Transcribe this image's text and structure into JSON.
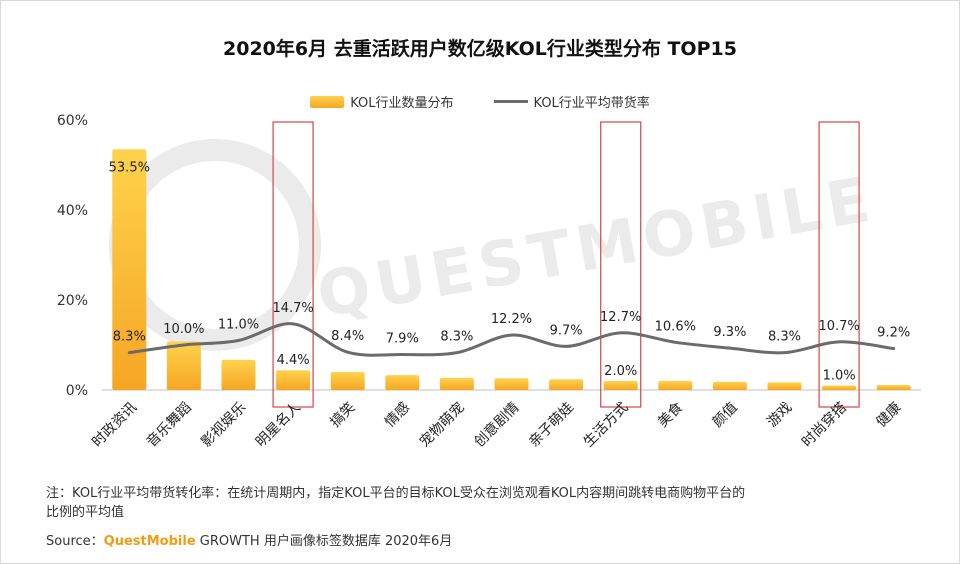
{
  "chart_data": {
    "type": "bar",
    "title": "2020年6月 去重活跃用户数亿级KOL行业类型分布 TOP15",
    "categories": [
      "时政资讯",
      "音乐舞蹈",
      "影视娱乐",
      "明星名人",
      "搞笑",
      "情感",
      "宠物萌宠",
      "创意剧情",
      "亲子萌娃",
      "生活方式",
      "美食",
      "颜值",
      "游戏",
      "时尚穿搭",
      "健康"
    ],
    "series": [
      {
        "name": "KOL行业数量分布",
        "type": "bar",
        "values": [
          53.5,
          10.8,
          6.7,
          4.4,
          4.0,
          3.3,
          2.7,
          2.6,
          2.4,
          2.0,
          2.0,
          1.8,
          1.7,
          1.0,
          1.1
        ],
        "labels": [
          "53.5%",
          null,
          null,
          "4.4%",
          null,
          null,
          null,
          null,
          null,
          "2.0%",
          null,
          null,
          null,
          "1.0%",
          null
        ]
      },
      {
        "name": "KOL行业平均带货率",
        "type": "line",
        "values": [
          8.3,
          10.0,
          11.0,
          14.7,
          8.4,
          7.9,
          8.3,
          12.2,
          9.7,
          12.7,
          10.6,
          9.3,
          8.3,
          10.7,
          9.2
        ],
        "labels": [
          "8.3%",
          "10.0%",
          "11.0%",
          "14.7%",
          "8.4%",
          "7.9%",
          "8.3%",
          "12.2%",
          "9.7%",
          "12.7%",
          "10.6%",
          "9.3%",
          "8.3%",
          "10.7%",
          "9.2%"
        ]
      }
    ],
    "highlighted": [
      "明星名人",
      "生活方式",
      "时尚穿搭"
    ],
    "ylim": [
      0,
      60
    ],
    "yticks": [
      "0%",
      "20%",
      "40%",
      "60%"
    ],
    "xlabel": "",
    "ylabel": "",
    "legend_position": "top-center",
    "grid": false
  },
  "colors": {
    "bar_top": "#ffd24d",
    "bar_bottom": "#f5a623",
    "line": "#6b6b6b",
    "highlight_box": "#d9534f",
    "watermark": "#ebebeb"
  },
  "watermark": "QUESTMOBILE",
  "note": {
    "line1": "注：KOL行业平均带货转化率：在统计周期内，指定KOL平台的目标KOL受众在浏览观看KOL内容期间跳转电商购物平台的",
    "line2": "比例的平均值"
  },
  "source": {
    "prefix": "Source：",
    "brand": "QuestMobile",
    "rest": " GROWTH 用户画像标签数据库 2020年6月"
  }
}
